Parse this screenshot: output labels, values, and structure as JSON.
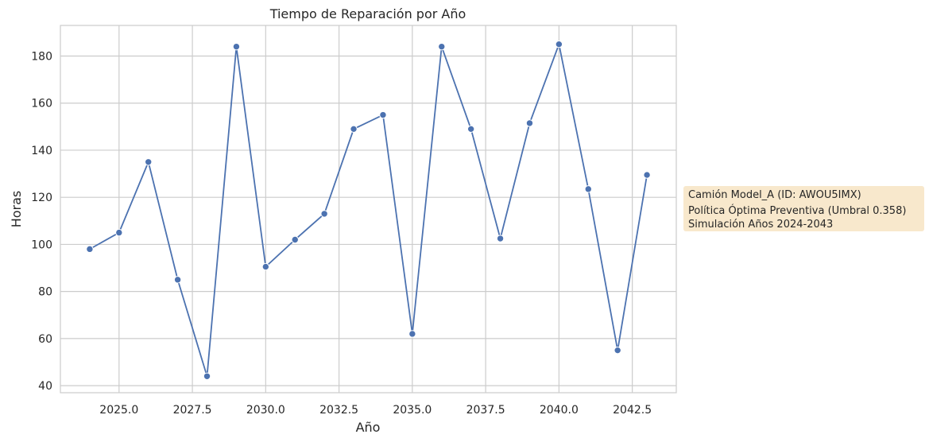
{
  "chart_data": {
    "type": "line",
    "title": "Tiempo de Reparación por Año",
    "xlabel": "Año",
    "ylabel": "Horas",
    "xlim": [
      2023.0,
      2044.0
    ],
    "ylim": [
      37,
      193
    ],
    "x_ticks": [
      2025.0,
      2027.5,
      2030.0,
      2032.5,
      2035.0,
      2037.5,
      2040.0,
      2042.5
    ],
    "x_tick_labels": [
      "2025.0",
      "2027.5",
      "2030.0",
      "2032.5",
      "2035.0",
      "2037.5",
      "2040.0",
      "2042.5"
    ],
    "y_ticks": [
      40,
      60,
      80,
      100,
      120,
      140,
      160,
      180
    ],
    "y_tick_labels": [
      "40",
      "60",
      "80",
      "100",
      "120",
      "140",
      "160",
      "180"
    ],
    "grid": true,
    "series": [
      {
        "x": [
          2024,
          2025,
          2026,
          2027,
          2028,
          2029,
          2030,
          2031,
          2032,
          2033,
          2034,
          2035,
          2036,
          2037,
          2038,
          2039,
          2040,
          2041,
          2042,
          2043
        ],
        "values": [
          98,
          105,
          135,
          85,
          44,
          184,
          90.5,
          102,
          113,
          149,
          155,
          62,
          184,
          149,
          102.5,
          151.5,
          185,
          123.5,
          55,
          129.5
        ]
      }
    ],
    "annotation": {
      "lines": [
        "Camión Model_A (ID: AWOU5IMX)",
        "Política Óptima Preventiva (Umbral 0.358)",
        "Simulación Años 2024-2043"
      ],
      "placement": "right-middle"
    },
    "colors": {
      "line": "#4c72b0",
      "grid": "#cccccc",
      "annotation_bg": "#f8e8cc"
    }
  }
}
